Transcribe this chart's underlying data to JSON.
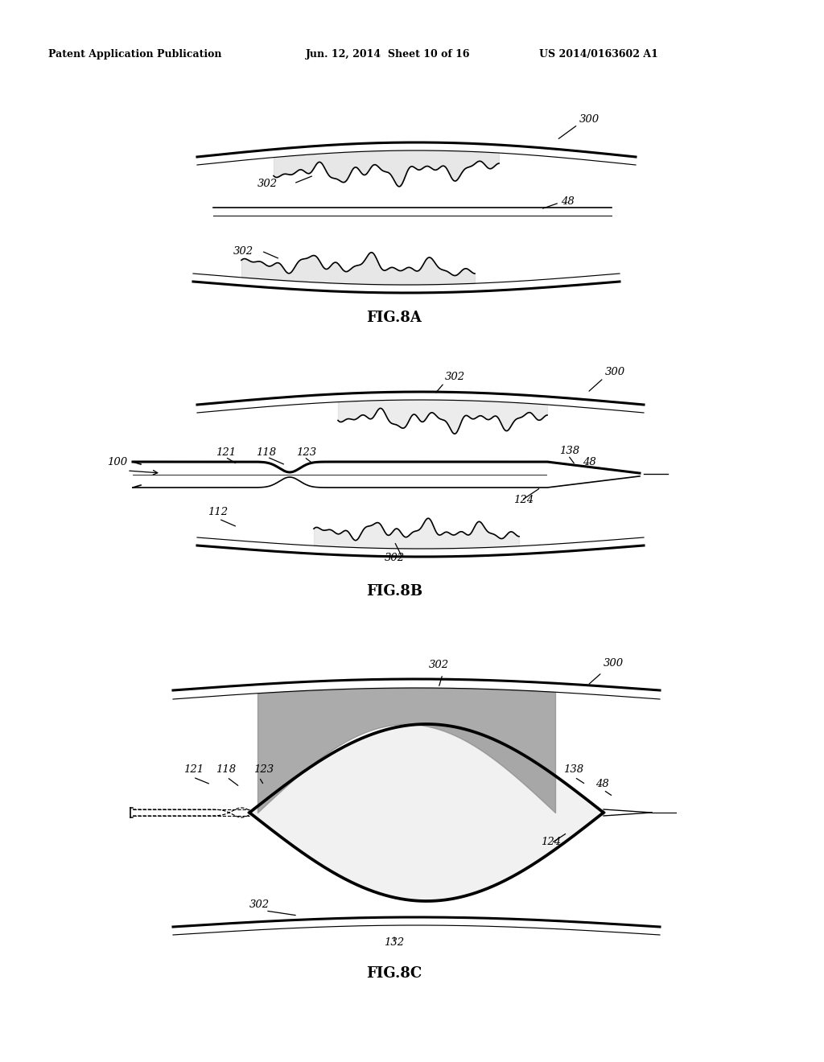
{
  "bg_color": "#ffffff",
  "header_left": "Patent Application Publication",
  "header_mid": "Jun. 12, 2014  Sheet 10 of 16",
  "header_right": "US 2014/0163602 A1",
  "fig8a_label": "FIG.8A",
  "fig8b_label": "FIG.8B",
  "fig8c_label": "FIG.8C",
  "lc": "#000000",
  "lw": 1.2,
  "tlw": 2.2
}
